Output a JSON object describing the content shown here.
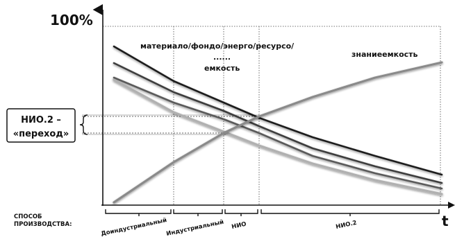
{
  "axis": {
    "y_max_label": "100%",
    "x_label": "t"
  },
  "labels": {
    "resource_intensity_line1": "материало/фондо/энерго/ресурсо/",
    "resource_intensity_dots": "......",
    "resource_intensity_line2": "емкость",
    "knowledge_intensity": "знаниеемкость"
  },
  "callout": {
    "line1": "НИО.2 –",
    "line2": "«переход»"
  },
  "production": {
    "label_line1": "СПОСОБ",
    "label_line2": "ПРОИЗВОДСТВА:",
    "eras": [
      {
        "name": "Доиндустриальный"
      },
      {
        "name": "Индустриальный"
      },
      {
        "name": "НИО"
      },
      {
        "name": "НИО.2"
      }
    ]
  },
  "colors": {
    "axis": "#111111",
    "grid": "#555555",
    "knowledge_line": "#8a8a8a",
    "resource_lines": [
      "#1e1e1e",
      "#3e3e3e",
      "#5a5a5a",
      "#b0b0b0"
    ]
  }
}
